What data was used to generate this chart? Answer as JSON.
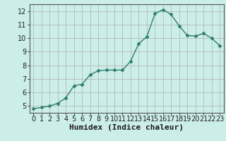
{
  "x": [
    0,
    1,
    2,
    3,
    4,
    5,
    6,
    7,
    8,
    9,
    10,
    11,
    12,
    13,
    14,
    15,
    16,
    17,
    18,
    19,
    20,
    21,
    22,
    23
  ],
  "y": [
    4.8,
    4.9,
    5.0,
    5.2,
    5.6,
    6.5,
    6.6,
    7.3,
    7.6,
    7.65,
    7.65,
    7.65,
    8.3,
    9.6,
    10.1,
    11.8,
    12.1,
    11.75,
    10.9,
    10.2,
    10.15,
    10.35,
    10.0,
    9.45
  ],
  "line_color": "#2e7d6e",
  "marker": "D",
  "marker_size": 2.5,
  "bg_color": "#cceee8",
  "grid_color": "#b0b0b0",
  "xlabel": "Humidex (Indice chaleur)",
  "xlim": [
    -0.5,
    23.5
  ],
  "ylim": [
    4.5,
    12.5
  ],
  "yticks": [
    5,
    6,
    7,
    8,
    9,
    10,
    11,
    12
  ],
  "xticks": [
    0,
    1,
    2,
    3,
    4,
    5,
    6,
    7,
    8,
    9,
    10,
    11,
    12,
    13,
    14,
    15,
    16,
    17,
    18,
    19,
    20,
    21,
    22,
    23
  ],
  "xlabel_fontsize": 8,
  "tick_fontsize": 7,
  "line_width": 1.0
}
